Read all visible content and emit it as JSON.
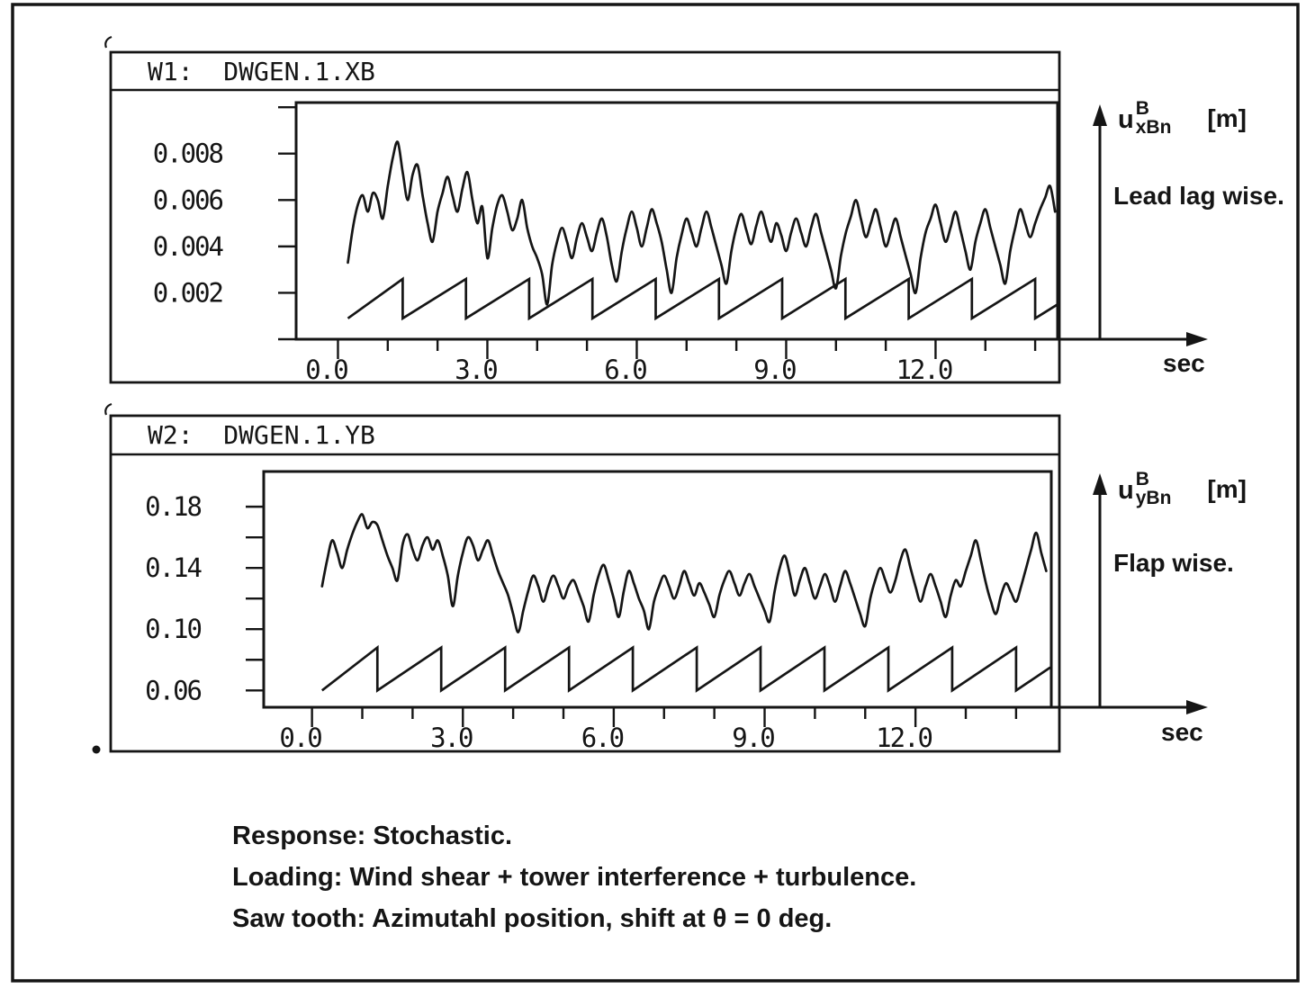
{
  "document": {
    "background": "#ffffff",
    "ink_color": "#151515"
  },
  "windows": [
    {
      "title": "W1:  DWGEN.1.XB",
      "y_axis_symbol": {
        "base": "u",
        "sup": "B",
        "sub": "xBn",
        "unit": "[m]"
      },
      "direction_label": "Lead lag wise.",
      "x_axis_unit": "sec"
    },
    {
      "title": "W2:  DWGEN.1.YB",
      "y_axis_symbol": {
        "base": "u",
        "sup": "B",
        "sub": "yBn",
        "unit": "[m]"
      },
      "direction_label": "Flap wise.",
      "x_axis_unit": "sec"
    }
  ],
  "notes": [
    "Response: Stochastic.",
    "Loading: Wind shear + tower interference + turbulence.",
    "Saw tooth: Azimutahl position, shift at θ = 0 deg."
  ],
  "chart_data": [
    {
      "type": "line",
      "title": "W1: DWGEN.1.XB",
      "ylabel": "u^B_xBn [m]  (lead lag wise)",
      "xlabel": "sec",
      "grid": false,
      "legend": "none",
      "xlim": [
        -0.84,
        14.45
      ],
      "ylim": [
        0,
        0.0102
      ],
      "x_ticks": [
        {
          "v": 0,
          "label": "0.0"
        },
        {
          "v": 3,
          "label": "3.0"
        },
        {
          "v": 6,
          "label": "6.0"
        },
        {
          "v": 9,
          "label": "9.0"
        },
        {
          "v": 12,
          "label": "12.0"
        }
      ],
      "x_minor_ticks": [
        1,
        2,
        4,
        5,
        7,
        8,
        10,
        11,
        13,
        14
      ],
      "y_ticks": [
        {
          "v": 0.008,
          "label": "0.008"
        },
        {
          "v": 0.006,
          "label": "0.006"
        },
        {
          "v": 0.004,
          "label": "0.004"
        },
        {
          "v": 0.002,
          "label": "0.002"
        }
      ],
      "y_minor_ticks": [
        0.01,
        0.0
      ],
      "series": [
        {
          "name": "stochastic response",
          "t0": 0.2,
          "dt": 0.1,
          "values": [
            0.0033,
            0.0048,
            0.0058,
            0.0062,
            0.0055,
            0.0063,
            0.006,
            0.0052,
            0.0066,
            0.0078,
            0.0085,
            0.0072,
            0.006,
            0.0071,
            0.0075,
            0.0062,
            0.005,
            0.0042,
            0.0055,
            0.0063,
            0.007,
            0.0062,
            0.0055,
            0.0065,
            0.0072,
            0.006,
            0.005,
            0.0057,
            0.0035,
            0.0048,
            0.0058,
            0.0062,
            0.0055,
            0.0047,
            0.0052,
            0.006,
            0.0048,
            0.004,
            0.0035,
            0.0028,
            0.0015,
            0.0032,
            0.0042,
            0.0048,
            0.0042,
            0.0035,
            0.0044,
            0.005,
            0.0044,
            0.0038,
            0.0046,
            0.0052,
            0.0044,
            0.0032,
            0.0025,
            0.0038,
            0.0048,
            0.0055,
            0.0048,
            0.004,
            0.0048,
            0.0056,
            0.005,
            0.0042,
            0.003,
            0.002,
            0.0035,
            0.0045,
            0.0052,
            0.0046,
            0.004,
            0.0048,
            0.0055,
            0.0048,
            0.004,
            0.0032,
            0.0024,
            0.0038,
            0.0048,
            0.0054,
            0.0047,
            0.0041,
            0.0049,
            0.0055,
            0.0048,
            0.0042,
            0.005,
            0.0045,
            0.0038,
            0.0046,
            0.0052,
            0.0046,
            0.004,
            0.0048,
            0.0054,
            0.0046,
            0.0038,
            0.003,
            0.0022,
            0.0036,
            0.0046,
            0.0053,
            0.006,
            0.0052,
            0.0044,
            0.005,
            0.0056,
            0.0048,
            0.004,
            0.0046,
            0.0052,
            0.0044,
            0.0036,
            0.0028,
            0.002,
            0.0035,
            0.0046,
            0.0052,
            0.0058,
            0.005,
            0.0042,
            0.0048,
            0.0055,
            0.0047,
            0.0038,
            0.003,
            0.0042,
            0.005,
            0.0056,
            0.0048,
            0.004,
            0.0032,
            0.0024,
            0.0038,
            0.0048,
            0.0056,
            0.005,
            0.0044,
            0.005,
            0.0056,
            0.0061,
            0.0066,
            0.0055
          ]
        },
        {
          "name": "sawtooth azimuthal position",
          "shape": "sawtooth",
          "t_start": 0.2,
          "first_drop": 1.3,
          "period": 1.27,
          "t_end": 14.45,
          "v_min": 0.0009,
          "v_max": 0.0026
        }
      ]
    },
    {
      "type": "line",
      "title": "W2: DWGEN.1.YB",
      "ylabel": "u^B_yBn [m]  (flap wise)",
      "xlabel": "sec",
      "grid": false,
      "legend": "none",
      "xlim": [
        -0.96,
        14.7
      ],
      "ylim": [
        0.049,
        0.203
      ],
      "x_ticks": [
        {
          "v": 0,
          "label": "0.0"
        },
        {
          "v": 3,
          "label": "3.0"
        },
        {
          "v": 6,
          "label": "6.0"
        },
        {
          "v": 9,
          "label": "9.0"
        },
        {
          "v": 12,
          "label": "12.0"
        }
      ],
      "x_minor_ticks": [
        1,
        2,
        4,
        5,
        7,
        8,
        10,
        11,
        13,
        14
      ],
      "y_ticks": [
        {
          "v": 0.18,
          "label": "0.18"
        },
        {
          "v": 0.14,
          "label": "0.14"
        },
        {
          "v": 0.1,
          "label": "0.10"
        },
        {
          "v": 0.06,
          "label": "0.06"
        }
      ],
      "y_minor_ticks": [
        0.16,
        0.12,
        0.08
      ],
      "series": [
        {
          "name": "stochastic response",
          "t0": 0.2,
          "dt": 0.1,
          "values": [
            0.128,
            0.145,
            0.158,
            0.15,
            0.14,
            0.152,
            0.162,
            0.17,
            0.175,
            0.166,
            0.17,
            0.168,
            0.158,
            0.148,
            0.14,
            0.132,
            0.155,
            0.162,
            0.152,
            0.145,
            0.155,
            0.16,
            0.152,
            0.158,
            0.148,
            0.135,
            0.115,
            0.135,
            0.15,
            0.16,
            0.155,
            0.145,
            0.152,
            0.158,
            0.148,
            0.138,
            0.13,
            0.122,
            0.11,
            0.098,
            0.112,
            0.125,
            0.135,
            0.128,
            0.118,
            0.128,
            0.135,
            0.128,
            0.12,
            0.128,
            0.132,
            0.124,
            0.115,
            0.105,
            0.122,
            0.135,
            0.142,
            0.132,
            0.12,
            0.108,
            0.125,
            0.138,
            0.13,
            0.12,
            0.112,
            0.1,
            0.118,
            0.128,
            0.135,
            0.128,
            0.12,
            0.128,
            0.138,
            0.13,
            0.122,
            0.13,
            0.124,
            0.116,
            0.108,
            0.122,
            0.132,
            0.138,
            0.13,
            0.122,
            0.13,
            0.136,
            0.128,
            0.12,
            0.112,
            0.105,
            0.125,
            0.14,
            0.148,
            0.136,
            0.122,
            0.132,
            0.14,
            0.13,
            0.12,
            0.128,
            0.136,
            0.128,
            0.118,
            0.128,
            0.138,
            0.13,
            0.12,
            0.11,
            0.102,
            0.12,
            0.132,
            0.14,
            0.132,
            0.124,
            0.132,
            0.145,
            0.152,
            0.14,
            0.128,
            0.118,
            0.128,
            0.136,
            0.128,
            0.118,
            0.108,
            0.122,
            0.132,
            0.128,
            0.138,
            0.148,
            0.158,
            0.145,
            0.13,
            0.118,
            0.11,
            0.122,
            0.13,
            0.124,
            0.118,
            0.128,
            0.14,
            0.152,
            0.163,
            0.15,
            0.138
          ]
        },
        {
          "name": "sawtooth azimuthal position",
          "shape": "sawtooth",
          "t_start": 0.2,
          "first_drop": 1.3,
          "period": 1.27,
          "t_end": 14.68,
          "v_min": 0.06,
          "v_max": 0.088
        }
      ]
    }
  ]
}
